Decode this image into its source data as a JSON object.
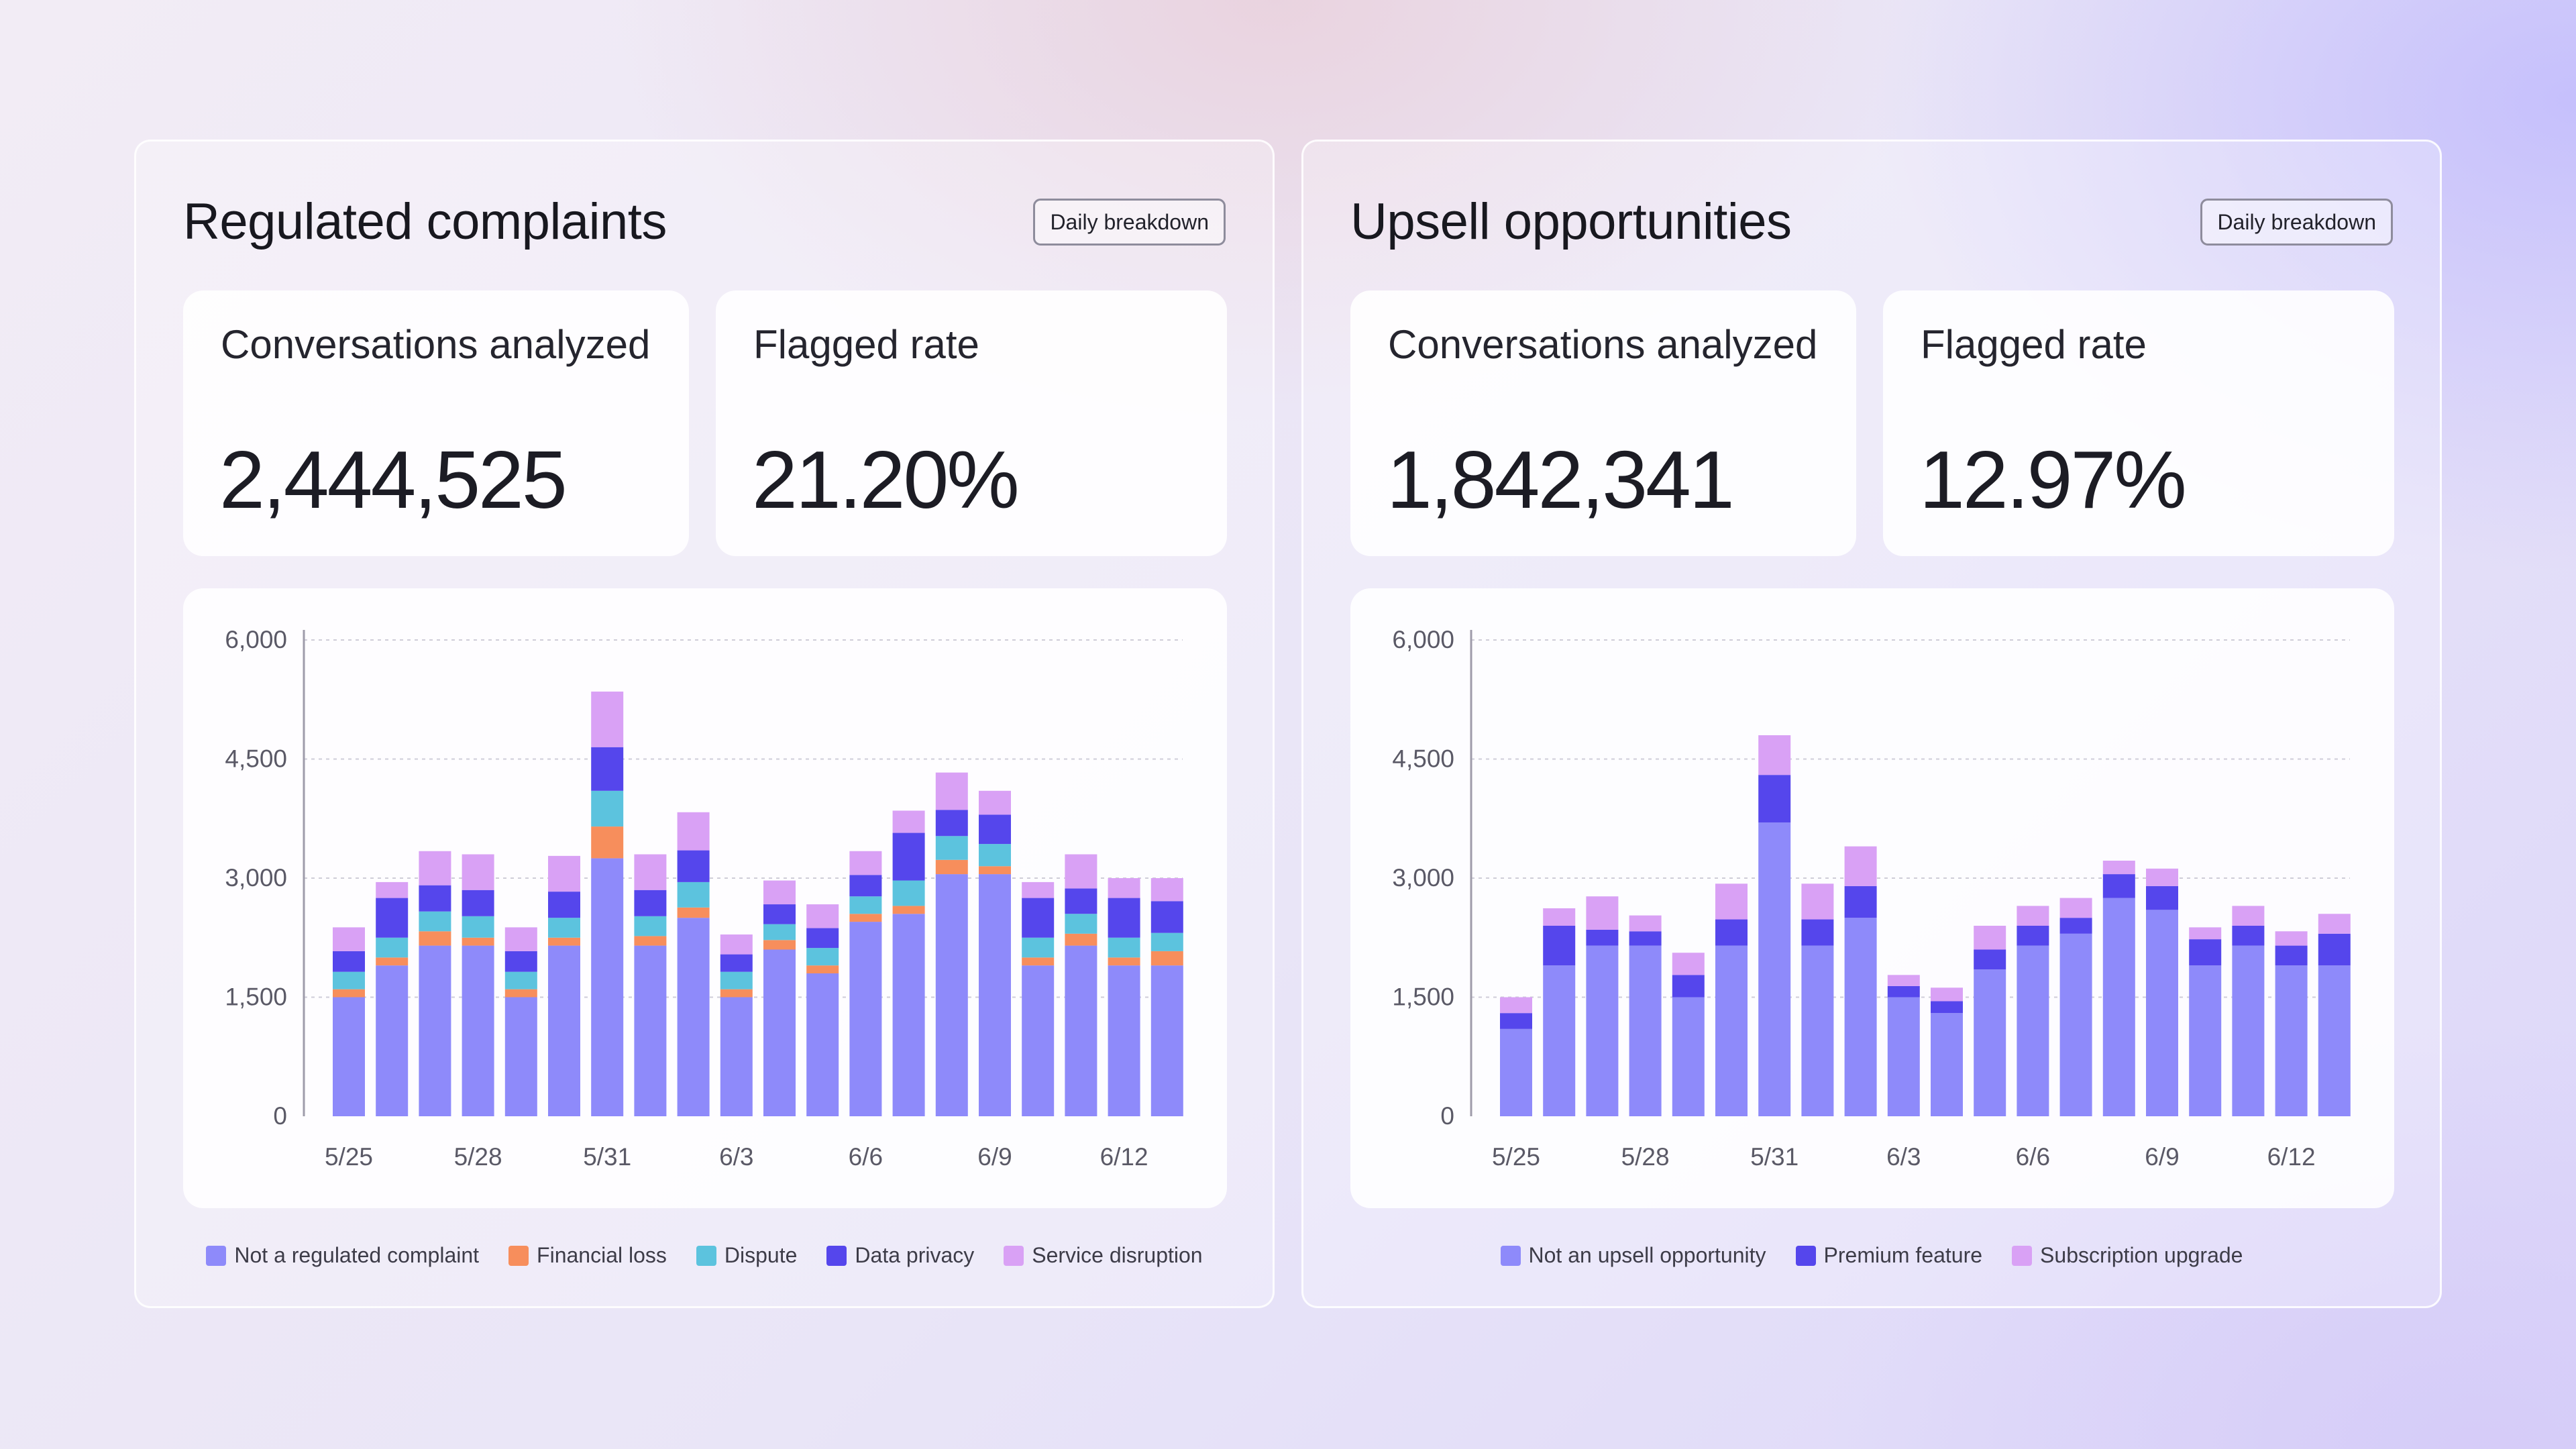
{
  "panels": [
    {
      "title": "Regulated complaints",
      "breakdown_label": "Daily breakdown",
      "stats": {
        "conversations_label": "Conversations analyzed",
        "conversations_value": "2,444,525",
        "flagged_label": "Flagged rate",
        "flagged_value": "21.20%"
      }
    },
    {
      "title": "Upsell opportunities",
      "breakdown_label": "Daily breakdown",
      "stats": {
        "conversations_label": "Conversations analyzed",
        "conversations_value": "1,842,341",
        "flagged_label": "Flagged rate",
        "flagged_value": "12.97%"
      }
    }
  ],
  "chart_data": [
    {
      "type": "bar",
      "stacked": true,
      "ylim": [
        0,
        6000
      ],
      "yticks": [
        "6,000",
        "4,500",
        "3,000",
        "1,500",
        "0"
      ],
      "ytick_values": [
        6000,
        4500,
        3000,
        1500,
        0
      ],
      "grid": true,
      "legend_position": "bottom",
      "xtick_labels": [
        "5/25",
        "5/28",
        "5/31",
        "6/3",
        "6/6",
        "6/9",
        "6/12"
      ],
      "xtick_indices": [
        0,
        3,
        6,
        9,
        12,
        15,
        18
      ],
      "categories": [
        "5/25",
        "5/26",
        "5/27",
        "5/28",
        "5/29",
        "5/30",
        "5/31",
        "6/1",
        "6/2",
        "6/3",
        "6/4",
        "6/5",
        "6/6",
        "6/7",
        "6/8",
        "6/9",
        "6/10",
        "6/11",
        "6/12",
        "6/13"
      ],
      "series": [
        {
          "name": "Not a regulated complaint",
          "color": "#8e8afa",
          "values": [
            1500,
            1900,
            2150,
            2150,
            1500,
            2150,
            3250,
            2150,
            2500,
            1500,
            2100,
            1800,
            2450,
            2550,
            3050,
            3050,
            1900,
            2150,
            1900,
            1900
          ]
        },
        {
          "name": "Financial loss",
          "color": "#f78e5c",
          "values": [
            100,
            100,
            180,
            100,
            100,
            100,
            400,
            120,
            130,
            100,
            120,
            100,
            100,
            100,
            180,
            100,
            100,
            150,
            100,
            180
          ]
        },
        {
          "name": "Dispute",
          "color": "#5cc3de",
          "values": [
            220,
            250,
            250,
            270,
            220,
            250,
            450,
            250,
            320,
            220,
            200,
            220,
            220,
            320,
            300,
            280,
            250,
            250,
            250,
            230
          ]
        },
        {
          "name": "Data privacy",
          "color": "#5546ec",
          "values": [
            260,
            500,
            330,
            330,
            260,
            330,
            550,
            330,
            400,
            220,
            250,
            250,
            270,
            600,
            330,
            370,
            500,
            320,
            500,
            400
          ]
        },
        {
          "name": "Service disruption",
          "color": "#d9a1f5",
          "values": [
            300,
            200,
            430,
            450,
            300,
            450,
            700,
            450,
            480,
            250,
            300,
            300,
            300,
            280,
            470,
            300,
            200,
            430,
            250,
            290
          ]
        }
      ]
    },
    {
      "type": "bar",
      "stacked": true,
      "ylim": [
        0,
        6000
      ],
      "yticks": [
        "6,000",
        "4,500",
        "3,000",
        "1,500",
        "0"
      ],
      "ytick_values": [
        6000,
        4500,
        3000,
        1500,
        0
      ],
      "grid": true,
      "legend_position": "bottom",
      "xtick_labels": [
        "5/25",
        "5/28",
        "5/31",
        "6/3",
        "6/6",
        "6/9",
        "6/12"
      ],
      "xtick_indices": [
        0,
        3,
        6,
        9,
        12,
        15,
        18
      ],
      "categories": [
        "5/25",
        "5/26",
        "5/27",
        "5/28",
        "5/29",
        "5/30",
        "5/31",
        "6/1",
        "6/2",
        "6/3",
        "6/4",
        "6/5",
        "6/6",
        "6/7",
        "6/8",
        "6/9",
        "6/10",
        "6/11",
        "6/12",
        "6/13"
      ],
      "series": [
        {
          "name": "Not an upsell opportunity",
          "color": "#8e8afa",
          "values": [
            1100,
            1900,
            2150,
            2150,
            1500,
            2150,
            3700,
            2150,
            2500,
            1500,
            1300,
            1850,
            2150,
            2300,
            2750,
            2600,
            1900,
            2150,
            1900,
            1900
          ]
        },
        {
          "name": "Premium feature",
          "color": "#5546ec",
          "values": [
            200,
            500,
            200,
            180,
            280,
            330,
            600,
            330,
            400,
            140,
            150,
            250,
            250,
            200,
            300,
            300,
            330,
            250,
            250,
            400
          ]
        },
        {
          "name": "Subscription upgrade",
          "color": "#d9a1f5",
          "values": [
            200,
            220,
            420,
            200,
            280,
            450,
            500,
            450,
            500,
            140,
            170,
            300,
            250,
            250,
            170,
            220,
            150,
            250,
            180,
            250
          ]
        }
      ]
    }
  ]
}
